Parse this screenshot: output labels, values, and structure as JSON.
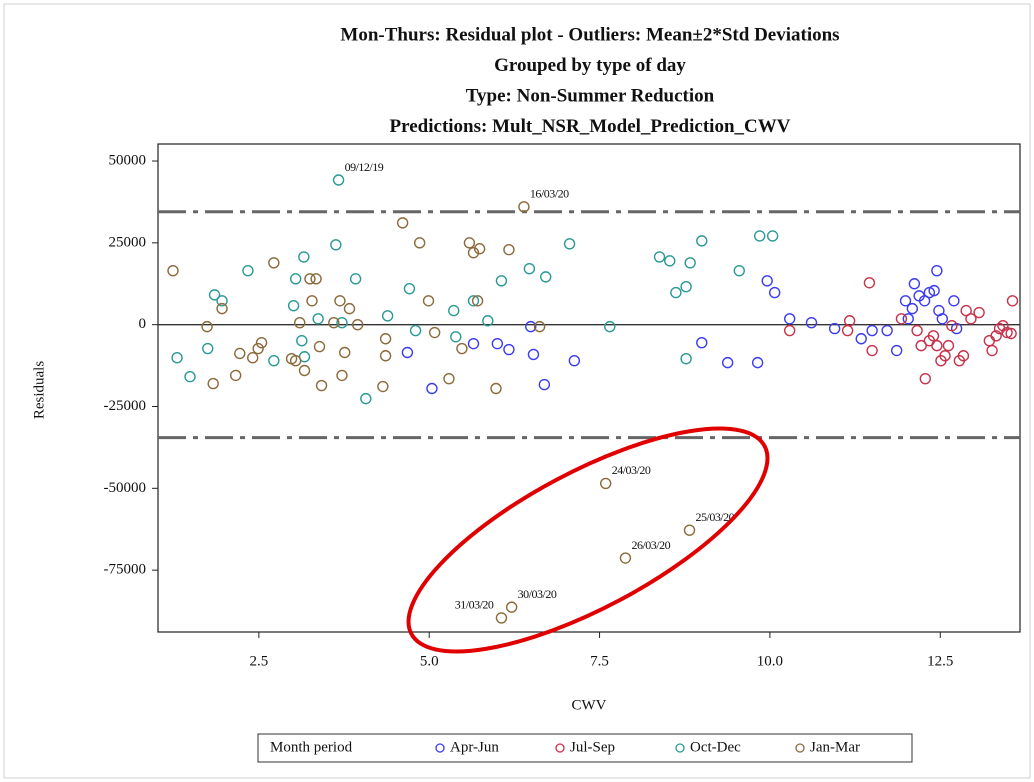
{
  "chart_data": {
    "type": "scatter",
    "titles": [
      "Mon-Thurs: Residual plot - Outliers: Mean±2*Std Deviations",
      "Grouped by type of day",
      "Type: Non-Summer Reduction",
      "Predictions: Mult_NSR_Model_Prediction_CWV"
    ],
    "x_label": "CWV",
    "y_label": "Residuals",
    "xlim": [
      1.02,
      13.67
    ],
    "ylim": [
      -93900,
      55200
    ],
    "xticks": [
      2.5,
      {
        "value": 5,
        "label": "5.0"
      },
      7.5,
      {
        "value": 10,
        "label": "10.0"
      },
      12.5
    ],
    "yticks": [
      50000,
      25000,
      0,
      -25000,
      -50000,
      -75000
    ],
    "bounds": [
      34500,
      -34500
    ],
    "legend_title": "Month period",
    "legend_position": "bottom",
    "series": [
      {
        "name": "Apr-Jun",
        "color": "#3c3cf0",
        "x": [
          4.68,
          5.04,
          5.65,
          6.0,
          6.17,
          6.49,
          6.53,
          6.69,
          7.13,
          9.0,
          9.38,
          9.82,
          9.96,
          10.07,
          10.29,
          10.61,
          10.95,
          11.34,
          11.5,
          11.72,
          11.86,
          11.99,
          12.03,
          12.09,
          12.12,
          12.19,
          12.27,
          12.34,
          12.41,
          12.45,
          12.48,
          12.53,
          12.7,
          12.74
        ],
        "values": [
          -8500,
          -19500,
          -5800,
          -5800,
          -7600,
          -600,
          -9100,
          -18300,
          -11000,
          -5500,
          -11600,
          -11600,
          13400,
          9800,
          1800,
          600,
          -1200,
          -4300,
          -1800,
          -1800,
          -7900,
          7300,
          1800,
          4900,
          12500,
          8800,
          7300,
          9800,
          10400,
          16500,
          4300,
          1800,
          7300,
          -1200
        ]
      },
      {
        "name": "Jul-Sep",
        "color": "#c8324b",
        "x": [
          10.29,
          11.17,
          11.14,
          11.46,
          11.5,
          11.93,
          12.16,
          12.22,
          12.28,
          12.34,
          12.4,
          12.45,
          12.51,
          12.57,
          12.62,
          12.67,
          12.78,
          12.84,
          12.88,
          12.95,
          13.07,
          13.22,
          13.26,
          13.32,
          13.37,
          13.42,
          13.48,
          13.54,
          13.56
        ],
        "values": [
          -1800,
          1200,
          -1800,
          12800,
          -7900,
          1800,
          -1800,
          -6400,
          -16500,
          -4900,
          -3400,
          -6400,
          -11000,
          -9500,
          -6400,
          -300,
          -11000,
          -9500,
          4300,
          1800,
          3700,
          -4900,
          -7900,
          -3400,
          -1200,
          -300,
          -2400,
          -2700,
          7300
        ]
      },
      {
        "name": "Oct-Dec",
        "color": "#2a9a95",
        "x": [
          1.3,
          1.49,
          1.75,
          1.85,
          1.96,
          2.34,
          2.72,
          3.01,
          3.04,
          3.16,
          3.13,
          3.17,
          3.37,
          3.67,
          3.63,
          3.72,
          3.92,
          4.07,
          4.39,
          4.71,
          4.8,
          5.36,
          5.39,
          5.65,
          5.86,
          6.06,
          6.47,
          6.71,
          7.06,
          7.65,
          8.38,
          8.53,
          8.62,
          8.77,
          8.83,
          9.0,
          8.77,
          9.55,
          9.85,
          10.04
        ],
        "values": [
          -10100,
          -15900,
          -7300,
          9100,
          7300,
          16500,
          -11000,
          5800,
          14000,
          20700,
          -4900,
          -9800,
          1800,
          44200,
          24400,
          600,
          14000,
          -22600,
          2700,
          11000,
          -1800,
          4300,
          -3700,
          7300,
          1200,
          13400,
          17100,
          14600,
          24700,
          -600,
          20700,
          19500,
          9800,
          11600,
          18900,
          25600,
          -10400,
          16500,
          27100,
          27100
        ]
      },
      {
        "name": "Jan-Mar",
        "color": "#8b6a3b",
        "x": [
          1.24,
          1.74,
          1.83,
          1.96,
          2.16,
          2.22,
          2.41,
          2.49,
          2.54,
          2.72,
          2.98,
          3.04,
          3.1,
          3.17,
          3.25,
          3.28,
          3.34,
          3.39,
          3.42,
          3.6,
          3.69,
          3.72,
          3.76,
          3.83,
          3.95,
          4.32,
          4.36,
          4.36,
          4.61,
          4.86,
          4.99,
          5.08,
          5.29,
          5.48,
          5.59,
          5.65,
          5.71,
          5.74,
          6.17,
          6.62,
          5.98,
          6.39,
          7.59,
          8.82,
          7.88,
          6.21,
          6.06
        ],
        "values": [
          16500,
          -600,
          -18000,
          4900,
          -15500,
          -8800,
          -10100,
          -7300,
          -5500,
          18900,
          -10400,
          -11000,
          600,
          -14000,
          14000,
          7300,
          14000,
          -6700,
          -18600,
          600,
          7300,
          -15500,
          -8500,
          4900,
          0,
          -18900,
          -4300,
          -9500,
          31100,
          25000,
          7300,
          -2400,
          -16500,
          -7300,
          25000,
          22000,
          7300,
          23200,
          22900,
          -600,
          -19500,
          36000,
          -48500,
          -62800,
          -71300,
          -86300,
          -89600
        ]
      }
    ],
    "annotations": [
      {
        "text": "09/12/19",
        "x": 3.67,
        "y": 44200,
        "color": "#2a7a78"
      },
      {
        "text": "16/03/20",
        "x": 6.39,
        "y": 36000,
        "color": "#6b4a1e"
      },
      {
        "text": "24/03/20",
        "x": 7.59,
        "y": -48500,
        "color": "#6b4a1e"
      },
      {
        "text": "25/03/20",
        "x": 8.82,
        "y": -62800,
        "color": "#6b4a1e"
      },
      {
        "text": "26/03/20",
        "x": 7.88,
        "y": -71300,
        "color": "#6b4a1e"
      },
      {
        "text": "30/03/20",
        "x": 6.21,
        "y": -86300,
        "color": "#6b4a1e"
      },
      {
        "text": "31/03/20",
        "x": 6.06,
        "y": -89600,
        "color": "#6b4a1e"
      }
    ]
  }
}
